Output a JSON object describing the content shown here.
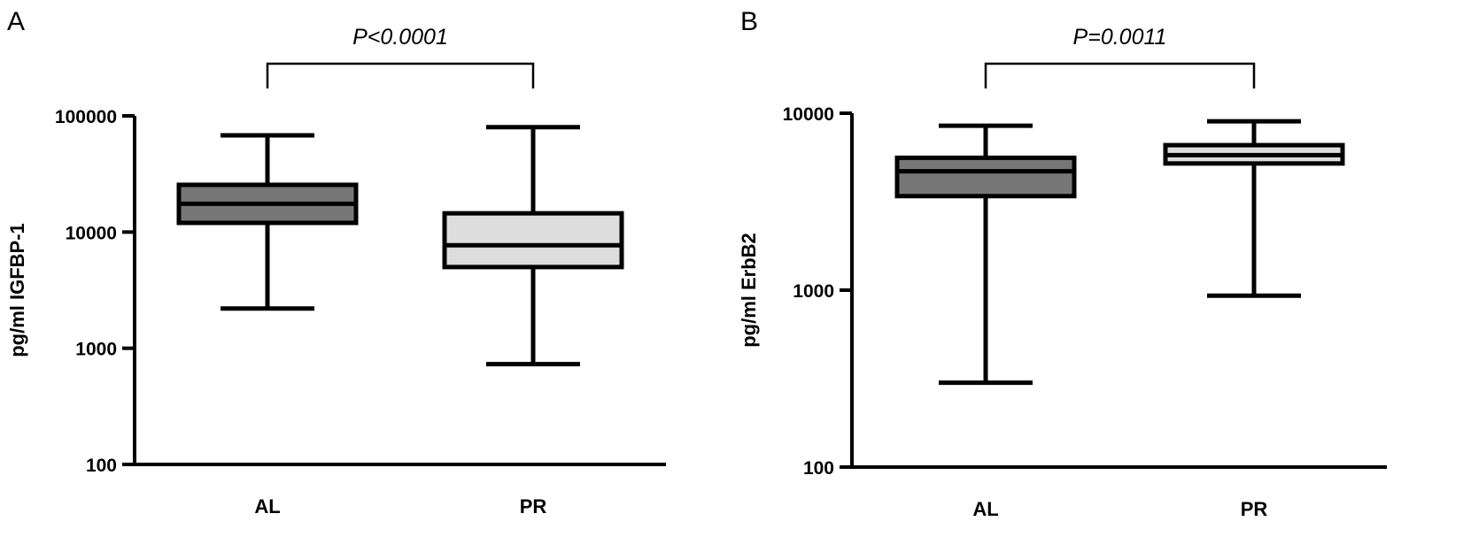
{
  "chart_data": [
    {
      "type": "box",
      "panel": "A",
      "ylabel": "pg/ml IGFBP-1",
      "yscale": "log",
      "ylim": [
        100,
        100000
      ],
      "yticks": [
        100,
        1000,
        10000,
        100000
      ],
      "categories": [
        "AL",
        "PR"
      ],
      "boxes": [
        {
          "category": "AL",
          "min": 2200,
          "q1": 12000,
          "median": 17500,
          "q3": 25500,
          "max": 68000,
          "fill": "#777777"
        },
        {
          "category": "PR",
          "min": 730,
          "q1": 5000,
          "median": 7700,
          "q3": 14500,
          "max": 80000,
          "fill": "#dddddd"
        }
      ],
      "annotation": {
        "text": "P<0.0001",
        "between": [
          "AL",
          "PR"
        ]
      }
    },
    {
      "type": "box",
      "panel": "B",
      "ylabel": "pg/ml ErbB2",
      "yscale": "log",
      "ylim": [
        100,
        10000
      ],
      "yticks": [
        100,
        1000,
        10000
      ],
      "categories": [
        "AL",
        "PR"
      ],
      "boxes": [
        {
          "category": "AL",
          "min": 300,
          "q1": 3400,
          "median": 4700,
          "q3": 5600,
          "max": 8500,
          "fill": "#777777"
        },
        {
          "category": "PR",
          "min": 930,
          "q1": 5200,
          "median": 5800,
          "q3": 6600,
          "max": 9000,
          "fill": "#dddddd"
        }
      ],
      "annotation": {
        "text": "P=0.0011",
        "between": [
          "AL",
          "PR"
        ]
      }
    }
  ]
}
